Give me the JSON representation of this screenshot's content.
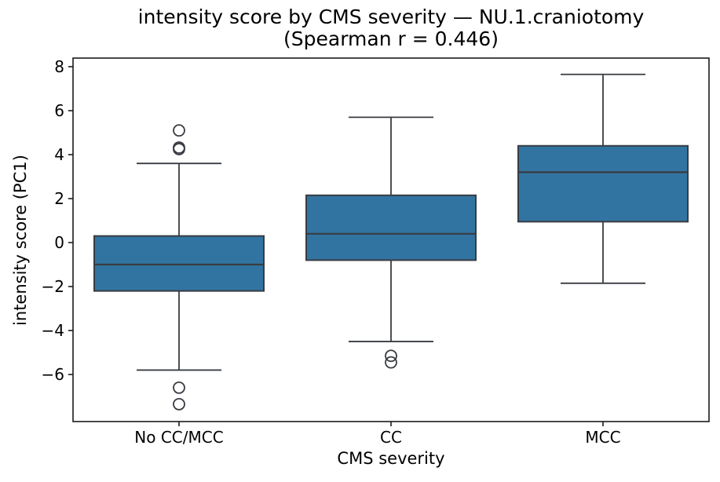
{
  "chart_data": {
    "type": "box",
    "title": "intensity score by CMS severity — NU.1.craniotomy",
    "subtitle": "(Spearman r = 0.446)",
    "xlabel": "CMS severity",
    "ylabel": "intensity score (PC1)",
    "categories": [
      "No CC/MCC",
      "CC",
      "MCC"
    ],
    "yticks": [
      8,
      6,
      4,
      2,
      0,
      -2,
      -4,
      -6
    ],
    "ylim": [
      -8.14,
      8.39
    ],
    "grid": false,
    "legend": false,
    "boxes": [
      {
        "category": "No CC/MCC",
        "whisker_low": -5.8,
        "q1": -2.2,
        "median": -1.0,
        "q3": 0.3,
        "whisker_high": 3.6,
        "outliers": [
          5.1,
          4.32,
          4.25,
          -6.6,
          -7.35
        ]
      },
      {
        "category": "CC",
        "whisker_low": -4.5,
        "q1": -0.8,
        "median": 0.4,
        "q3": 2.15,
        "whisker_high": 5.7,
        "outliers": [
          -5.15,
          -5.45
        ]
      },
      {
        "category": "MCC",
        "whisker_low": -1.85,
        "q1": 0.95,
        "median": 3.2,
        "q3": 4.4,
        "whisker_high": 7.65,
        "outliers": []
      }
    ],
    "colors": {
      "box_fill": "#3274a1",
      "box_line": "#383c42",
      "axis": "#1a1a1a",
      "text": "#000000"
    }
  }
}
